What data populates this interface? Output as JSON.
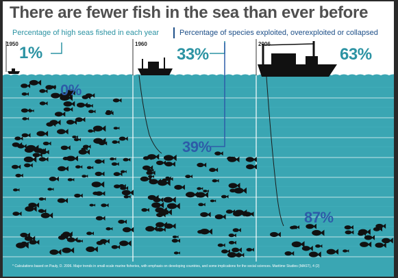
{
  "colors": {
    "sea": "#3aa6b3",
    "sea_band": "#44b2be",
    "fish": "#111111",
    "teal_text": "#2c93a3",
    "blue_text": "#2d5ca8",
    "legend_blue": "#1d4f88"
  },
  "chart_data": {
    "type": "infographic",
    "title": "There are fewer fish in the sea than ever before",
    "legend": [
      {
        "name": "Percentage of high seas fished in each year",
        "color": "#2c93a3"
      },
      {
        "name": "Percentage of species exploited, overexploited or collapsed",
        "color": "#1d4f88"
      }
    ],
    "categories": [
      "1950",
      "1960",
      "2006"
    ],
    "series": [
      {
        "name": "Percentage of high seas fished in each year",
        "values": [
          1,
          33,
          63
        ],
        "labels": [
          "1%",
          "33%",
          "63%"
        ]
      },
      {
        "name": "Percentage of species exploited, overexploited or collapsed",
        "values": [
          0,
          39,
          87
        ],
        "labels": [
          "0%",
          "39%",
          "87%"
        ]
      }
    ],
    "footnote": "* Calculations based on Pauly, D. 2006. Major trends in small-scale marine fisheries, with emphasis on developing countries, and some implications for the social sciences. Maritime Studies (MAST), 4 (2)"
  }
}
